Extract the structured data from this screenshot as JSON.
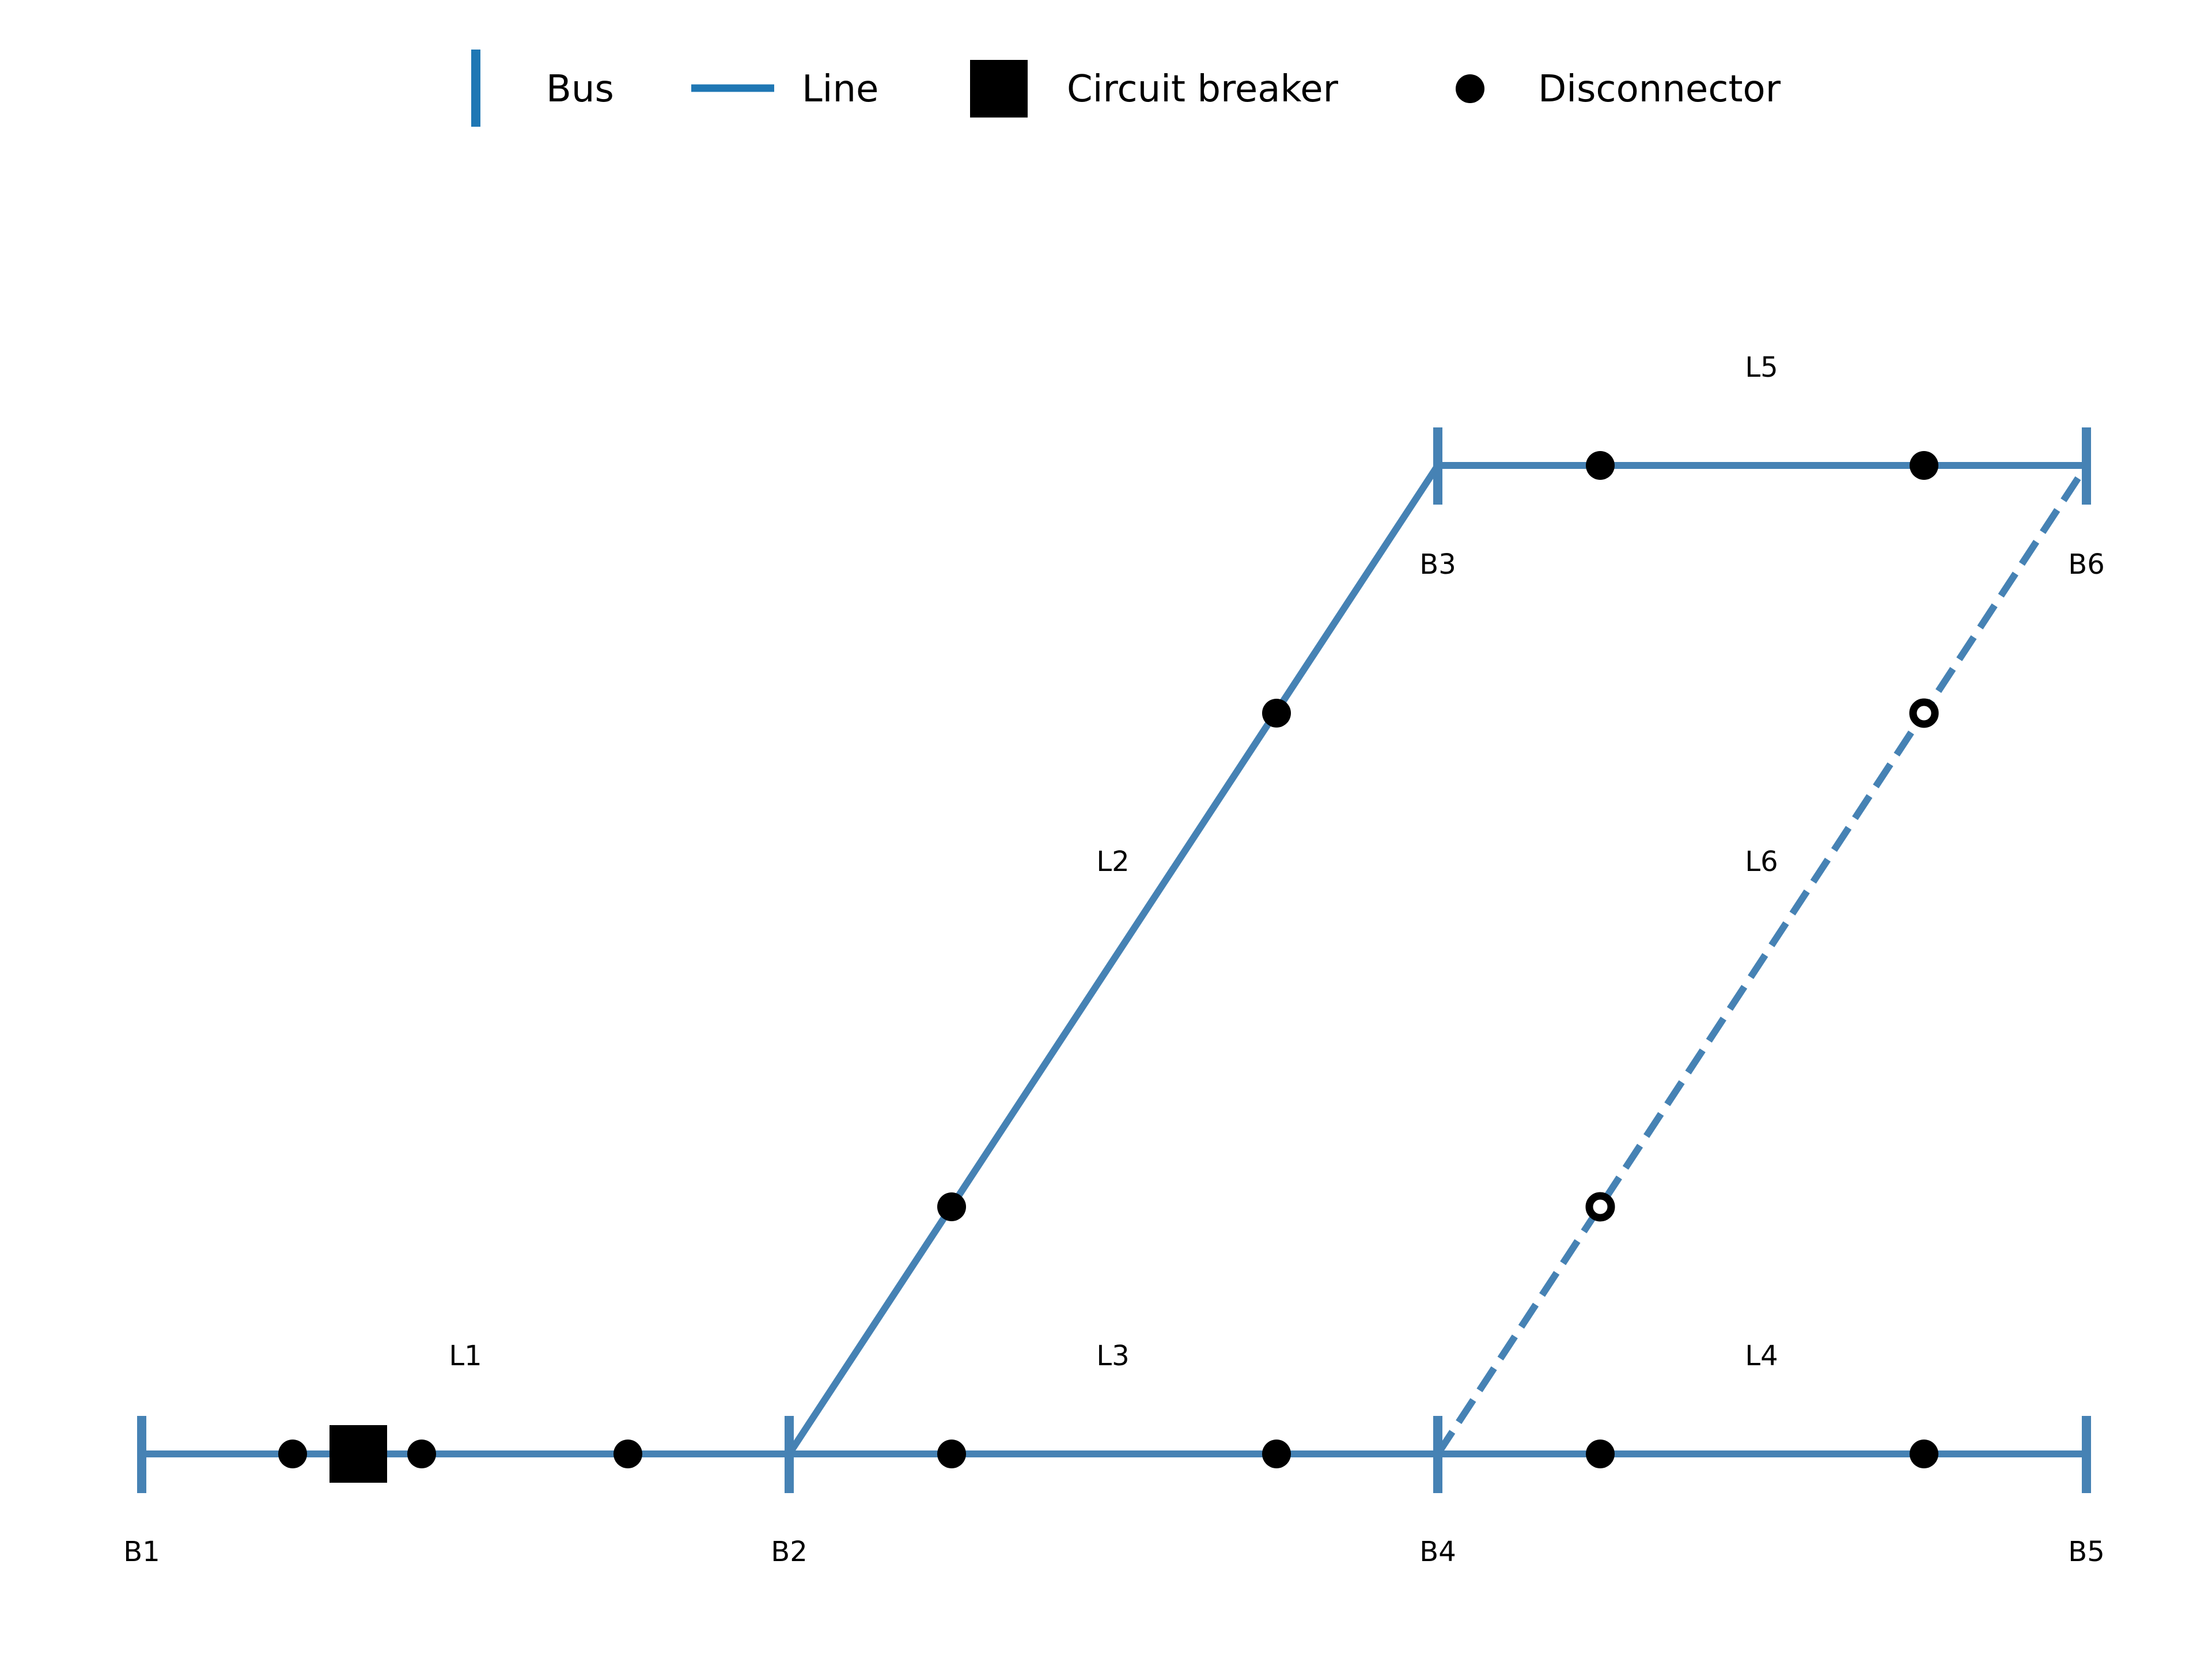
{
  "legend": {
    "bus": "Bus",
    "line": "Line",
    "circuit_breaker": "Circuit breaker",
    "disconnector": "Disconnector"
  },
  "colors": {
    "bus": "#4682b4",
    "line": "#4682b4",
    "legend_line": "#1f77b4",
    "device": "#000000"
  },
  "buses": [
    {
      "id": "B1",
      "label": "B1"
    },
    {
      "id": "B2",
      "label": "B2"
    },
    {
      "id": "B3",
      "label": "B3"
    },
    {
      "id": "B4",
      "label": "B4"
    },
    {
      "id": "B5",
      "label": "B5"
    },
    {
      "id": "B6",
      "label": "B6"
    }
  ],
  "lines": [
    {
      "id": "L1",
      "label": "L1",
      "from": "B1",
      "to": "B2",
      "status": "in-service",
      "devices": [
        "disconnector",
        "circuit-breaker",
        "disconnector",
        "disconnector"
      ]
    },
    {
      "id": "L2",
      "label": "L2",
      "from": "B2",
      "to": "B3",
      "status": "in-service",
      "devices": [
        "disconnector",
        "disconnector"
      ]
    },
    {
      "id": "L3",
      "label": "L3",
      "from": "B2",
      "to": "B4",
      "status": "in-service",
      "devices": [
        "disconnector",
        "disconnector"
      ]
    },
    {
      "id": "L4",
      "label": "L4",
      "from": "B4",
      "to": "B5",
      "status": "in-service",
      "devices": [
        "disconnector",
        "disconnector"
      ]
    },
    {
      "id": "L5",
      "label": "L5",
      "from": "B3",
      "to": "B6",
      "status": "in-service",
      "devices": [
        "disconnector",
        "disconnector"
      ]
    },
    {
      "id": "L6",
      "label": "L6",
      "from": "B4",
      "to": "B6",
      "status": "out-of-service",
      "devices": [
        "open-disconnector",
        "open-disconnector"
      ]
    }
  ]
}
